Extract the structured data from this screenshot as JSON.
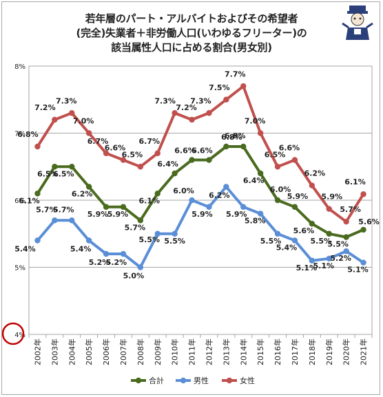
{
  "title": {
    "line1": "若年層のパート・アルバイトおよびその希望者",
    "line2": "(完全)失業者＋非労働人口(いわゆるフリーター)の",
    "line3": "該当属性人口に占める割合(男女別)"
  },
  "chart_data": {
    "type": "line",
    "x": [
      "2002年",
      "2003年",
      "2004年",
      "2005年",
      "2006年",
      "2007年",
      "2008年",
      "2009年",
      "2010年",
      "2011年",
      "2012年",
      "2013年",
      "2014年",
      "2015年",
      "2016年",
      "2017年",
      "2018年",
      "2019年",
      "2020年",
      "2021年"
    ],
    "series": [
      {
        "name": "合計",
        "color": "#4a6b1f",
        "values": [
          6.1,
          6.5,
          6.5,
          6.2,
          5.9,
          5.9,
          5.7,
          6.1,
          6.4,
          6.6,
          6.6,
          6.8,
          6.8,
          6.4,
          6.0,
          5.9,
          5.65,
          5.5,
          5.45,
          5.56
        ],
        "labels": [
          "6.1%",
          "6.5%",
          "6.5%",
          "6.2%",
          "5.9%",
          "5.9%",
          "5.7%",
          "6.1%",
          "6.4%",
          "6.6%",
          "6.6%",
          "6.8%",
          "6.8%",
          "6.4%",
          "6.0%",
          "5.9%",
          "5.6%",
          "5.5%",
          "5.5%",
          "5.6%"
        ]
      },
      {
        "name": "男性",
        "color": "#5a8ed6",
        "values": [
          5.4,
          5.7,
          5.7,
          5.4,
          5.2,
          5.2,
          5.0,
          5.5,
          5.5,
          6.0,
          5.9,
          6.2,
          5.9,
          5.8,
          5.5,
          5.4,
          5.1,
          5.13,
          5.24,
          5.07
        ],
        "labels": [
          "5.4%",
          "5.7%",
          "5.7%",
          "5.4%",
          "5.2%",
          "5.2%",
          "5.0%",
          "5.5%",
          "5.5%",
          "6.0%",
          "5.9%",
          "6.2%",
          "5.9%",
          "5.8%",
          "5.5%",
          "5.4%",
          "5.1%",
          "5.1%",
          "5.2%",
          "5.1%"
        ]
      },
      {
        "name": "女性",
        "color": "#c0504d",
        "values": [
          6.8,
          7.2,
          7.3,
          7.0,
          6.7,
          6.6,
          6.5,
          6.7,
          7.3,
          7.2,
          7.3,
          7.5,
          7.7,
          7.0,
          6.5,
          6.6,
          6.22,
          5.87,
          5.68,
          6.09
        ],
        "labels": [
          "6.8%",
          "7.2%",
          "7.3%",
          "7.0%",
          "6.7%",
          "6.6%",
          "6.5%",
          "6.7%",
          "7.3%",
          "7.2%",
          "7.3%",
          "7.5%",
          "7.7%",
          "7.0%",
          "6.5%",
          "6.6%",
          "6.2%",
          "5.9%",
          "5.7%",
          "6.1%"
        ]
      }
    ],
    "y_ticks": [
      "4%",
      "5%",
      "6%",
      "7%",
      "8%"
    ],
    "ylim": [
      4,
      8
    ],
    "grid": true,
    "legend": "bottom"
  }
}
